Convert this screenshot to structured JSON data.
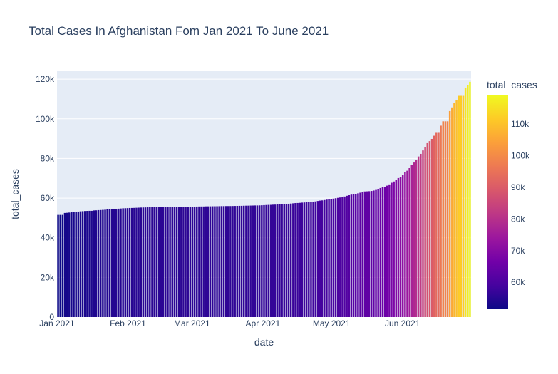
{
  "chart_data": {
    "type": "bar",
    "title": "Total Cases In Afghanistan Fom Jan 2021 To June 2021",
    "xlabel": "date",
    "ylabel": "total_cases",
    "x_start": "2021-01-01",
    "x_end": "2021-06-30",
    "x_ticks": [
      {
        "date": "2021-01-01",
        "label": "Jan 2021"
      },
      {
        "date": "2021-02-01",
        "label": "Feb 2021"
      },
      {
        "date": "2021-03-01",
        "label": "Mar 2021"
      },
      {
        "date": "2021-04-01",
        "label": "Apr 2021"
      },
      {
        "date": "2021-05-01",
        "label": "May 2021"
      },
      {
        "date": "2021-06-01",
        "label": "Jun 2021"
      }
    ],
    "ylim": [
      0,
      124000
    ],
    "y_ticks": [
      {
        "value": 0,
        "label": "0"
      },
      {
        "value": 20000,
        "label": "20k"
      },
      {
        "value": 40000,
        "label": "40k"
      },
      {
        "value": 60000,
        "label": "60k"
      },
      {
        "value": 80000,
        "label": "80k"
      },
      {
        "value": 100000,
        "label": "100k"
      },
      {
        "value": 120000,
        "label": "120k"
      }
    ],
    "grid": true,
    "plot_background": "#e5ecf6",
    "colorbar": {
      "title": "total_cases",
      "range": [
        51500,
        119000
      ],
      "ticks": [
        {
          "value": 60000,
          "label": "60k"
        },
        {
          "value": 70000,
          "label": "70k"
        },
        {
          "value": 80000,
          "label": "80k"
        },
        {
          "value": 90000,
          "label": "90k"
        },
        {
          "value": 100000,
          "label": "100k"
        },
        {
          "value": 110000,
          "label": "110k"
        }
      ],
      "colorscale": [
        "#0d0887",
        "#46039f",
        "#7201a8",
        "#9c179e",
        "#bd3786",
        "#d8576b",
        "#ed7953",
        "#fb9f3a",
        "#fdca26",
        "#f0f921"
      ]
    },
    "series": [
      {
        "values": [
          51526,
          51526,
          51526,
          52513,
          52586,
          52709,
          52909,
          53011,
          53105,
          53207,
          53332,
          53400,
          53489,
          53538,
          53584,
          53584,
          53775,
          53831,
          53938,
          53984,
          54062,
          54141,
          54278,
          54403,
          54483,
          54559,
          54595,
          54672,
          54750,
          54854,
          54891,
          54939,
          55008,
          55023,
          55059,
          55121,
          55174,
          55231,
          55265,
          55295,
          55335,
          55359,
          55384,
          55402,
          55420,
          55445,
          55473,
          55492,
          55514,
          55518,
          55540,
          55557,
          55575,
          55580,
          55604,
          55617,
          55646,
          55664,
          55680,
          55696,
          55707,
          55714,
          55733,
          55759,
          55770,
          55775,
          55827,
          55840,
          55847,
          55876,
          55876,
          55894,
          55917,
          55959,
          55959,
          55985,
          55985,
          55995,
          56016,
          56044,
          56069,
          56093,
          56103,
          56153,
          56177,
          56192,
          56226,
          56254,
          56290,
          56294,
          56322,
          56384,
          56454,
          56517,
          56572,
          56595,
          56676,
          56717,
          56779,
          56873,
          56943,
          57019,
          57144,
          57160,
          57242,
          57364,
          57492,
          57534,
          57612,
          57721,
          57793,
          57898,
          57991,
          58037,
          58214,
          58312,
          58542,
          58730,
          58843,
          59015,
          59225,
          59370,
          59576,
          59745,
          59939,
          60122,
          60300,
          60563,
          60797,
          61162,
          61455,
          61755,
          61842,
          62063,
          62403,
          62718,
          63045,
          63355,
          63412,
          63484,
          63598,
          63819,
          64122,
          64575,
          65080,
          65486,
          65728,
          66275,
          66903,
          67743,
          68366,
          69130,
          70111,
          70761,
          71838,
          72977,
          73819,
          75119,
          76628,
          77963,
          79301,
          81005,
          82326,
          84050,
          85892,
          87716,
          88740,
          89861,
          91458,
          93272,
          93288,
          96531,
          98734,
          98734,
          98734,
          103902,
          105749,
          107957,
          109532,
          111592,
          111592,
          111592,
          115751,
          117158,
          118659
        ]
      }
    ]
  }
}
